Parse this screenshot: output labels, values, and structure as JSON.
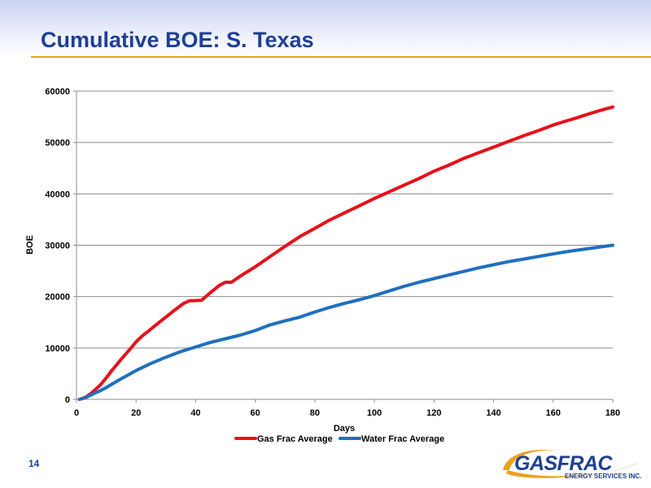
{
  "slide": {
    "title": "Cumulative BOE: S. Texas",
    "page_number": "14",
    "logo_text": "GASFRAC",
    "logo_subtext": "ENERGY SERVICES INC."
  },
  "colors": {
    "title": "#1f3f96",
    "rule": "#e8a31c",
    "gas": "#e8101a",
    "water": "#1f6fbf"
  },
  "chart_data": {
    "type": "line",
    "xlabel": "Days",
    "ylabel": "BOE",
    "xlim": [
      0,
      180
    ],
    "ylim": [
      0,
      60000
    ],
    "x_ticks": [
      0,
      20,
      40,
      60,
      80,
      100,
      120,
      140,
      160,
      180
    ],
    "y_ticks": [
      0,
      10000,
      20000,
      30000,
      40000,
      50000,
      60000
    ],
    "grid": "horizontal",
    "legend_position": "bottom",
    "series": [
      {
        "name": "Gas Frac Average",
        "color": "#e8101a",
        "x": [
          1,
          3,
          5,
          8,
          10,
          12,
          15,
          18,
          20,
          22,
          25,
          28,
          30,
          33,
          36,
          38,
          39,
          42,
          45,
          48,
          50,
          52,
          55,
          60,
          65,
          70,
          75,
          80,
          85,
          90,
          95,
          100,
          105,
          110,
          115,
          120,
          125,
          130,
          135,
          140,
          145,
          150,
          155,
          160,
          165,
          168,
          170,
          175,
          180
        ],
        "y": [
          0,
          400,
          1200,
          2800,
          4200,
          5700,
          7800,
          9800,
          11200,
          12300,
          13700,
          15100,
          16000,
          17400,
          18700,
          19200,
          19200,
          19300,
          20800,
          22200,
          22800,
          22800,
          24000,
          25800,
          27800,
          29800,
          31700,
          33300,
          34900,
          36300,
          37700,
          39100,
          40400,
          41700,
          43000,
          44400,
          45600,
          46900,
          48000,
          49100,
          50200,
          51300,
          52300,
          53400,
          54300,
          54800,
          55200,
          56100,
          56900
        ]
      },
      {
        "name": "Water Frac Average",
        "color": "#1f6fbf",
        "x": [
          1,
          3,
          5,
          8,
          10,
          12,
          15,
          20,
          25,
          30,
          35,
          40,
          45,
          50,
          55,
          60,
          65,
          70,
          75,
          80,
          85,
          90,
          95,
          100,
          105,
          110,
          115,
          120,
          125,
          130,
          135,
          140,
          145,
          150,
          155,
          160,
          165,
          170,
          175,
          180
        ],
        "y": [
          0,
          300,
          900,
          1700,
          2300,
          3000,
          4000,
          5600,
          7000,
          8200,
          9300,
          10200,
          11100,
          11800,
          12500,
          13400,
          14500,
          15300,
          16000,
          17000,
          17900,
          18700,
          19400,
          20200,
          21100,
          22000,
          22800,
          23500,
          24200,
          24900,
          25600,
          26200,
          26800,
          27300,
          27800,
          28300,
          28800,
          29200,
          29600,
          30000
        ]
      }
    ]
  }
}
